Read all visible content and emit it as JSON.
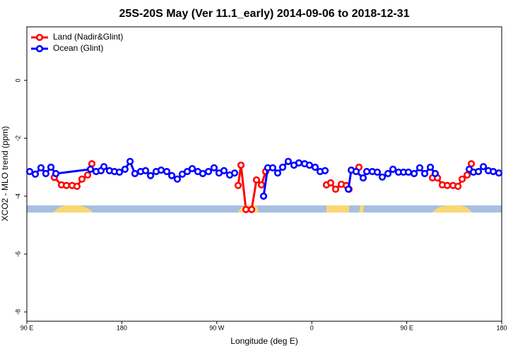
{
  "chart_data": {
    "type": "line",
    "title": "25S-20S May (Ver 11.1_early)   2014-09-06 to 2018-12-31",
    "x_label": "Longitude (deg E)",
    "y_label": "XCO2 - MLO trend (ppm)",
    "xlim": [
      90,
      540
    ],
    "xticks": [
      {
        "value": 90,
        "label": "90 E"
      },
      {
        "value": 180,
        "label": "180"
      },
      {
        "value": 270,
        "label": "90 W"
      },
      {
        "value": 360,
        "label": "0"
      },
      {
        "value": 450,
        "label": "90 E"
      },
      {
        "value": 540,
        "label": "180"
      }
    ],
    "ylim": [
      -8.32,
      1.85
    ],
    "yticks": [
      0,
      -2,
      -4,
      -6,
      -8
    ],
    "legend": "top-left",
    "series": [
      {
        "name": "Land (Nadir&Glint)",
        "color": "#ff0000",
        "x": [
          116,
          122.8,
          127.5,
          132.9,
          137.5,
          142.2,
          147.6,
          151.6,
          null,
          290.2,
          292.9,
          297.6,
          303,
          307.6,
          312.3,
          316.3,
          null,
          373.9,
          377.9,
          382.6,
          388,
          392.7,
          395.3,
          null,
          404.7,
          null,
          474.4,
          479.1,
          483.7,
          488.4,
          493.8,
          498.5,
          502.5,
          507.2,
          511.2
        ],
        "values": [
          -3.35,
          -3.61,
          -3.63,
          -3.63,
          -3.66,
          -3.41,
          -3.27,
          -2.88,
          null,
          -3.63,
          -2.93,
          -4.46,
          -4.46,
          -3.44,
          -3.61,
          -3.15,
          null,
          -3.61,
          -3.54,
          -3.76,
          -3.59,
          -3.63,
          -3.76,
          null,
          -3.0,
          null,
          -3.37,
          -3.37,
          -3.61,
          -3.63,
          -3.63,
          -3.66,
          -3.41,
          -3.27,
          -2.88
        ]
      },
      {
        "name": "Ocean (Glint)",
        "color": "#0000ff",
        "x": [
          92.7,
          98,
          103.4,
          108,
          112.8,
          117.5,
          150.3,
          155.6,
          160.3,
          163,
          168.3,
          173,
          177.7,
          183,
          187.8,
          192.4,
          197.8,
          202.5,
          207.2,
          212.5,
          217.2,
          222.6,
          227.3,
          232.6,
          237.3,
          242,
          246.7,
          252,
          256.7,
          262.1,
          267.4,
          272.1,
          276.8,
          282.2,
          286.9,
          null,
          314.3,
          318.3,
          323,
          327.7,
          332.4,
          337.7,
          343.1,
          347.8,
          353.2,
          357.8,
          363.2,
          367.9,
          372.6,
          null,
          394.7,
          397.4,
          402,
          408.7,
          412.1,
          417.4,
          422.1,
          426.8,
          432.2,
          436.9,
          442.2,
          446.9,
          451.6,
          457,
          462.3,
          467,
          472.4,
          477,
          null,
          509.2,
          513.2,
          517.9,
          522.6,
          527.3,
          532,
          537.3
        ],
        "values": [
          -3.15,
          -3.24,
          -3.02,
          -3.22,
          -3.0,
          -3.22,
          -3.07,
          -3.15,
          -3.12,
          -2.98,
          -3.12,
          -3.15,
          -3.17,
          -3.07,
          -2.8,
          -3.22,
          -3.15,
          -3.12,
          -3.29,
          -3.15,
          -3.1,
          -3.15,
          -3.29,
          -3.41,
          -3.24,
          -3.15,
          -3.05,
          -3.15,
          -3.22,
          -3.15,
          -3.02,
          -3.2,
          -3.12,
          -3.27,
          -3.2,
          null,
          -4.0,
          -3.02,
          -3.02,
          -3.2,
          -3.0,
          -2.8,
          -2.93,
          -2.85,
          -2.88,
          -2.93,
          -3.0,
          -3.15,
          -3.12,
          null,
          -3.76,
          -3.1,
          -3.15,
          -3.37,
          -3.15,
          -3.15,
          -3.17,
          -3.34,
          -3.22,
          -3.07,
          -3.17,
          -3.17,
          -3.17,
          -3.22,
          -3.02,
          -3.22,
          -3.0,
          -3.22,
          null,
          -3.07,
          -3.17,
          -3.15,
          -2.98,
          -3.12,
          -3.15,
          -3.2
        ]
      }
    ]
  }
}
